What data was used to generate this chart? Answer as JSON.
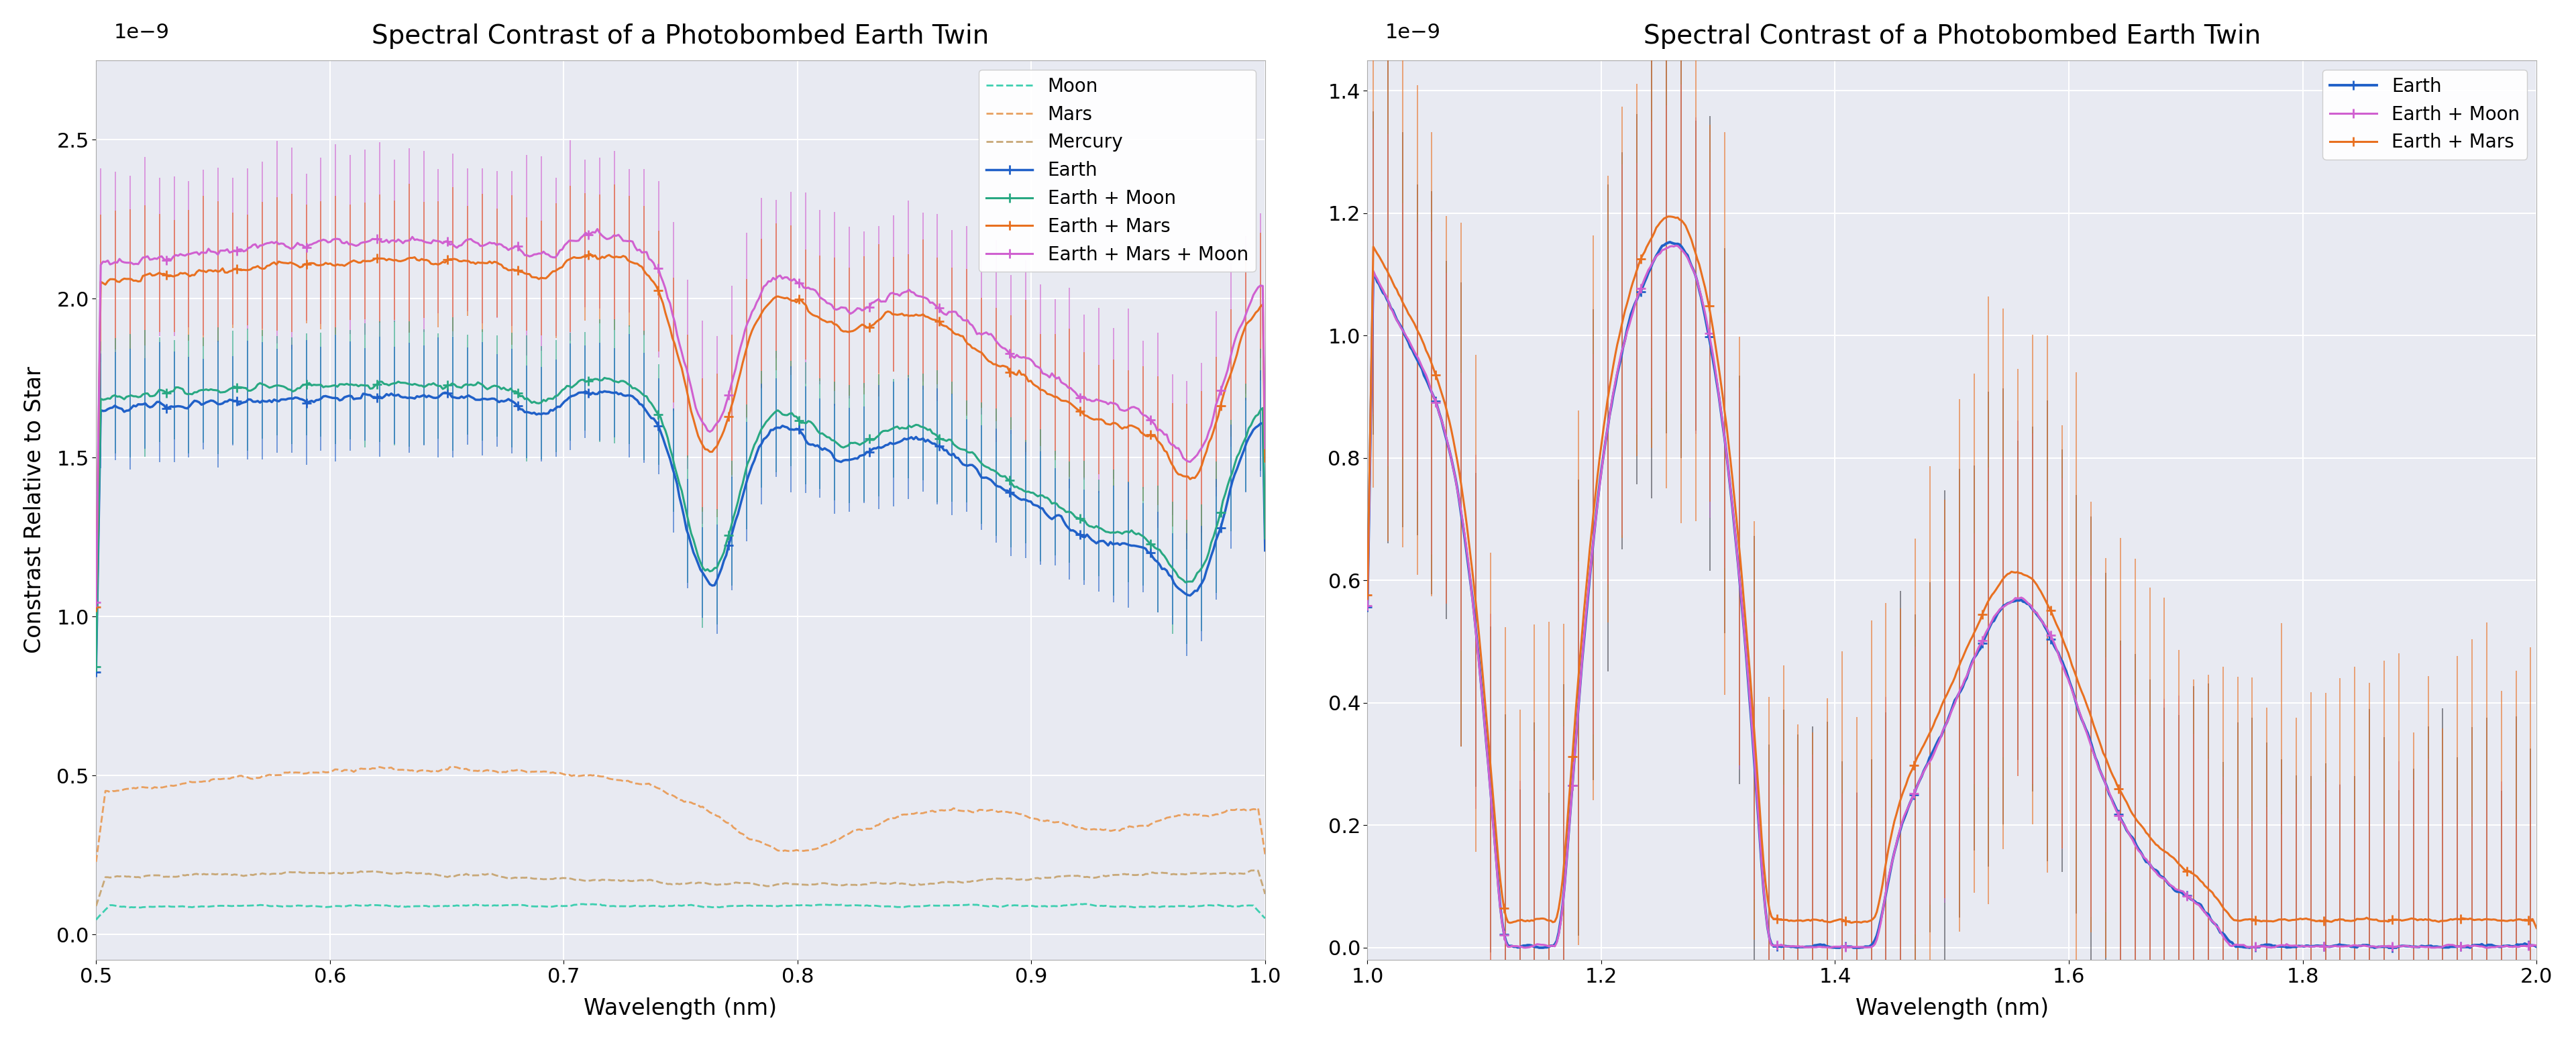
{
  "title": "Spectral Contrast of a Photobombed Earth Twin",
  "ylabel": "Constrast Relative to Star",
  "xlabel": "Wavelength (nm)",
  "scale_label": "1e−9",
  "plot_bg_color": "#e8eaf2",
  "left": {
    "xlim": [
      0.5,
      1.0
    ],
    "ylim": [
      -0.08,
      2.75
    ],
    "xticks": [
      0.5,
      0.6,
      0.7,
      0.8,
      0.9,
      1.0
    ],
    "yticks": [
      0.0,
      0.5,
      1.0,
      1.5,
      2.0,
      2.5
    ]
  },
  "right": {
    "xlim": [
      1.0,
      2.0
    ],
    "ylim": [
      -0.02,
      1.45
    ],
    "xticks": [
      1.0,
      1.2,
      1.4,
      1.6,
      1.8,
      2.0
    ],
    "yticks": [
      0.0,
      0.2,
      0.4,
      0.6,
      0.8,
      1.0,
      1.2,
      1.4
    ]
  },
  "colors": {
    "moon": "#3ecfb0",
    "mars": "#e8a060",
    "mercury": "#c8a878",
    "earth": "#2060c8",
    "earth_moon": "#28a882",
    "earth_mars": "#e87020",
    "earth_mars_moon": "#d060d0",
    "earth_moon_right": "#d060d0",
    "earth_mars_right": "#e87020",
    "eb_earth": "#2060c8",
    "eb_earth_moon": "#d060d0",
    "eb_earth_mars": "#e87020",
    "eb_earth_mars_moon": "#d060d0",
    "eb_right_earth": "#555560",
    "eb_right_moon": "#d060d0",
    "eb_right_mars": "#e87020"
  }
}
